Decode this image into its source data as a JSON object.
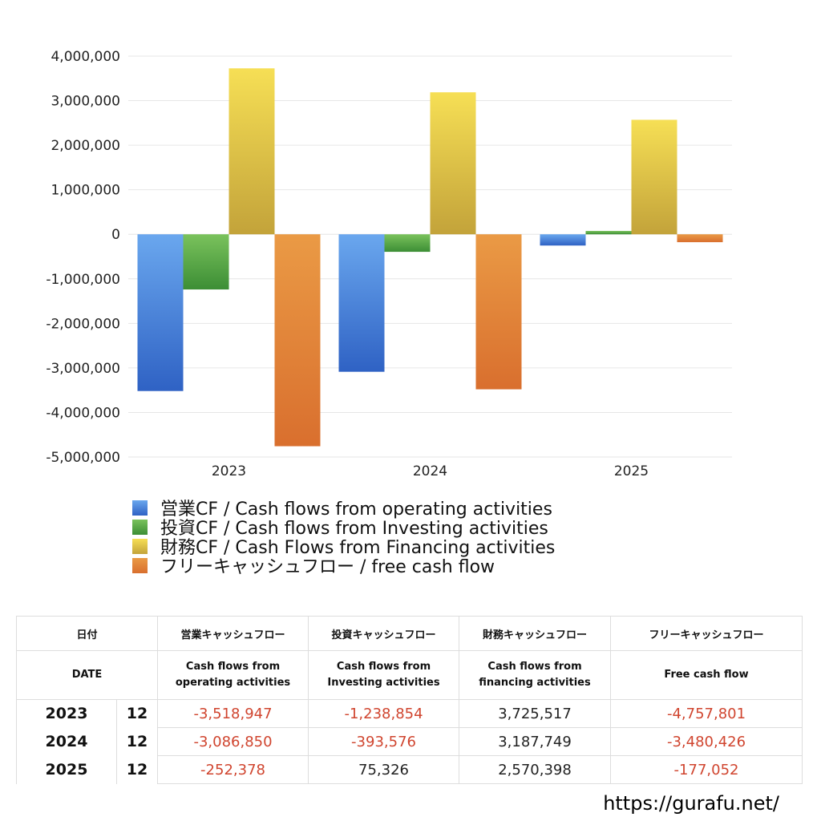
{
  "chart_data": {
    "type": "bar",
    "categories": [
      "2023",
      "2024",
      "2025"
    ],
    "series": [
      {
        "name": "営業CF / Cash flows from operating activities",
        "values": [
          -3518947,
          -3086850,
          -252378
        ],
        "color_top": "#6aa7ee",
        "color_bottom": "#2f62c4"
      },
      {
        "name": "投資CF / Cash flows from Investing activities",
        "values": [
          -1238854,
          -393576,
          75326
        ],
        "color_top": "#7ac25c",
        "color_bottom": "#3c8e35"
      },
      {
        "name": "財務CF / Cash Flows from Financing activities",
        "values": [
          3725517,
          3187749,
          2570398
        ],
        "color_top": "#f6df55",
        "color_bottom": "#c3a33a"
      },
      {
        "name": "フリーキャッシュフロー / free cash flow",
        "values": [
          -4757801,
          -3480426,
          -177052
        ],
        "color_top": "#ea9a45",
        "color_bottom": "#d96f2e"
      }
    ],
    "ylim": [
      -5000000,
      4000000
    ],
    "yticks": [
      4000000,
      3000000,
      2000000,
      1000000,
      0,
      -1000000,
      -2000000,
      -3000000,
      -4000000,
      -5000000
    ],
    "ytick_labels": [
      "4,000,000",
      "3,000,000",
      "2,000,000",
      "1,000,000",
      "0",
      "-1,000,000",
      "-2,000,000",
      "-3,000,000",
      "-4,000,000",
      "-5,000,000"
    ],
    "grid": true,
    "legend_position": "bottom-left"
  },
  "table": {
    "header_jp": [
      "日付",
      "営業キャッシュフロー",
      "投資キャッシュフロー",
      "財務キャッシュフロー",
      "フリーキャッシュフロー"
    ],
    "header_en": {
      "date": "DATE",
      "operating": [
        "Cash flows from",
        "operating activities"
      ],
      "investing": [
        "Cash flows from",
        "Investing activities"
      ],
      "financing": [
        "Cash flows from",
        "financing activities"
      ],
      "free": "Free cash flow"
    },
    "rows": [
      {
        "year": "2023",
        "month": "12",
        "operating": "-3,518,947",
        "investing": "-1,238,854",
        "financing": "3,725,517",
        "free": "-4,757,801"
      },
      {
        "year": "2024",
        "month": "12",
        "operating": "-3,086,850",
        "investing": "-393,576",
        "financing": "3,187,749",
        "free": "-3,480,426"
      },
      {
        "year": "2025",
        "month": "12",
        "operating": "-252,378",
        "investing": "75,326",
        "financing": "2,570,398",
        "free": "-177,052"
      }
    ]
  },
  "footer": {
    "url": "https://gurafu.net/"
  }
}
